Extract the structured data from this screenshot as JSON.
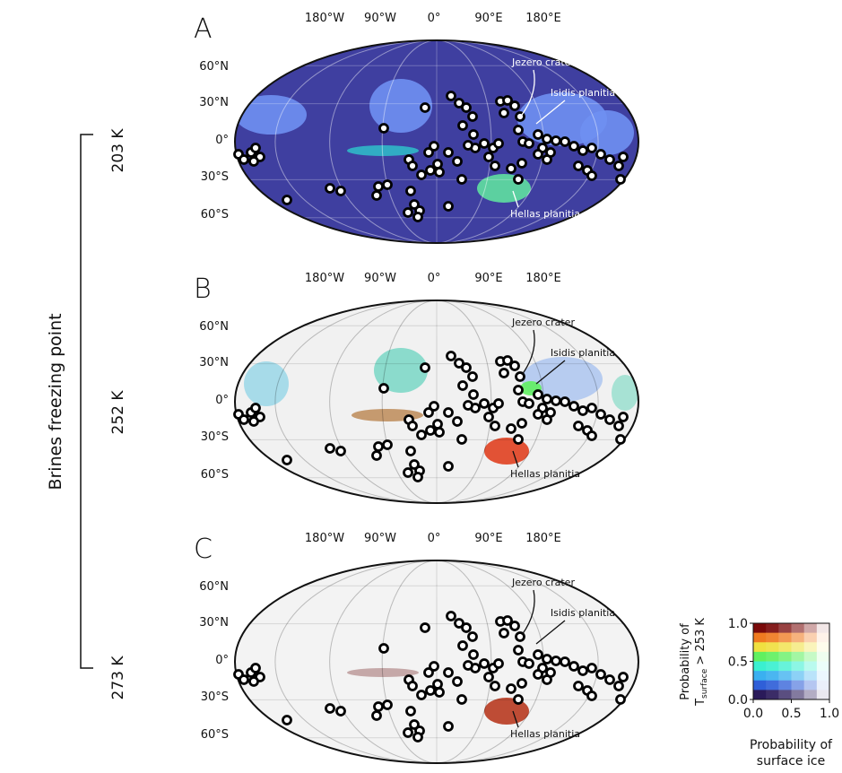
{
  "panels": [
    {
      "letter": "A",
      "longitudes": [
        "180°W",
        "90°W",
        "0°",
        "90°E",
        "180°E"
      ],
      "latitudes": [
        "60°N",
        "30°N",
        "0°",
        "30°S",
        "60°S"
      ],
      "annotations": [
        "Jezero crater",
        "Isidis planitia",
        "Hellas planitia"
      ]
    },
    {
      "letter": "B",
      "longitudes": [
        "180°W",
        "90°W",
        "0°",
        "90°E",
        "180°E"
      ],
      "latitudes": [
        "60°N",
        "30°N",
        "0°",
        "30°S",
        "60°S"
      ],
      "annotations": [
        "Jezero crater",
        "Isidis planitia",
        "Hellas planitia"
      ]
    },
    {
      "letter": "C",
      "longitudes": [
        "180°W",
        "90°W",
        "0°",
        "90°E",
        "180°E"
      ],
      "latitudes": [
        "60°N",
        "30°N",
        "0°",
        "30°S",
        "60°S"
      ],
      "annotations": [
        "Jezero crater",
        "Isidis planitia",
        "Hellas planitia"
      ]
    }
  ],
  "bracket": {
    "label": "Brines freezing point",
    "temperatures": [
      "203 K",
      "252 K",
      "273 K"
    ]
  },
  "legend": {
    "y_label": [
      "Probability of",
      "T",
      "surface",
      " > 253 K"
    ],
    "y_ticks": [
      "1.0",
      "0.5",
      "0.0"
    ],
    "x_ticks": [
      "0.0",
      "0.5",
      "1.0"
    ],
    "x_label": [
      "Probability of",
      "surface ice"
    ]
  }
}
